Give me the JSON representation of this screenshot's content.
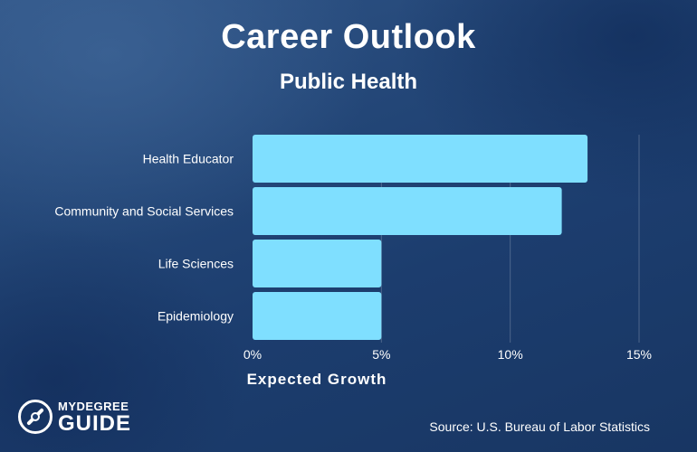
{
  "chart_data": {
    "type": "bar",
    "orientation": "horizontal",
    "title": "Career Outlook",
    "subtitle": "Public Health",
    "categories": [
      "Health Educator",
      "Community and Social Services",
      "Life Sciences",
      "Epidemiology"
    ],
    "values": [
      13,
      12,
      5,
      5
    ],
    "xlabel": "Expected Growth",
    "ylabel": "",
    "xlim": [
      0,
      15
    ],
    "ticks": [
      0,
      5,
      10,
      15
    ],
    "tick_labels": [
      "0%",
      "5%",
      "10%",
      "15%"
    ],
    "grid": true,
    "bar_color": "#7fdfff",
    "source": "Source: U.S. Bureau of Labor Statistics"
  },
  "branding": {
    "logo_line1": "MYDEGREE",
    "logo_line2": "GUIDE",
    "logo_icon": "compass-icon"
  }
}
